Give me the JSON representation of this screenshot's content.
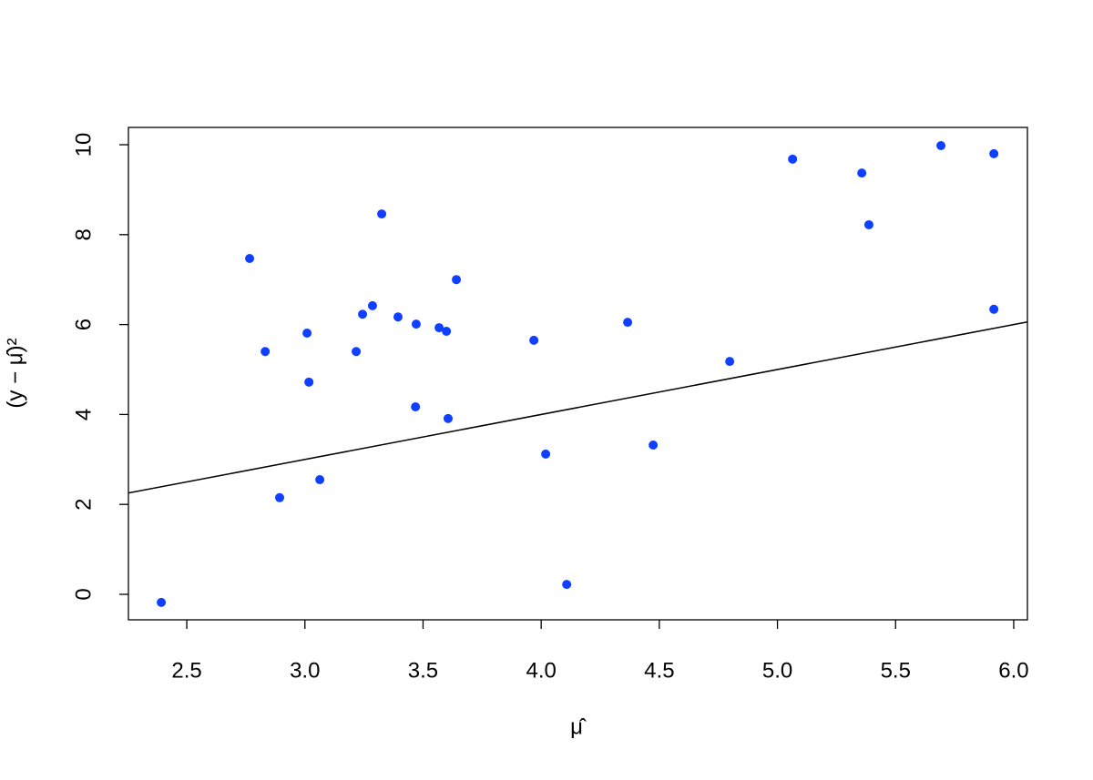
{
  "chart_data": {
    "type": "scatter",
    "x_label": "μ̂",
    "y_label": "(y − μ̂)²",
    "color": "#1040ff",
    "xlim": [
      2.253,
      6.058
    ],
    "ylim": [
      -0.567,
      10.385
    ],
    "xticks": [
      2.5,
      {
        "value": 3,
        "label": "3.0"
      },
      3.5,
      {
        "value": 4,
        "label": "4.0"
      },
      4.5,
      {
        "value": 5,
        "label": "5.0"
      },
      5.5,
      {
        "value": 6,
        "label": "6.0"
      }
    ],
    "yticks": [
      0,
      2,
      4,
      6,
      8,
      10
    ],
    "reference_line": {
      "intercept": 0,
      "slope": 1
    },
    "series": [
      {
        "x": [
          2.392,
          2.766,
          2.832,
          2.893,
          3.009,
          3.017,
          3.063,
          3.217,
          3.244,
          3.286,
          3.325,
          3.394,
          3.468,
          3.471,
          3.568,
          3.599,
          3.606,
          3.641,
          3.969,
          4.019,
          4.108,
          4.366,
          4.474,
          4.798,
          5.064,
          5.357,
          5.387,
          5.692,
          5.916,
          5.916
        ],
        "values": [
          -0.18,
          7.47,
          5.4,
          2.15,
          5.81,
          4.72,
          2.55,
          5.4,
          6.23,
          6.42,
          8.46,
          6.17,
          4.17,
          6.01,
          5.93,
          5.85,
          3.91,
          7.0,
          5.65,
          3.12,
          0.22,
          6.05,
          3.32,
          5.18,
          9.68,
          9.37,
          8.22,
          9.98,
          9.8,
          6.34
        ]
      }
    ]
  }
}
